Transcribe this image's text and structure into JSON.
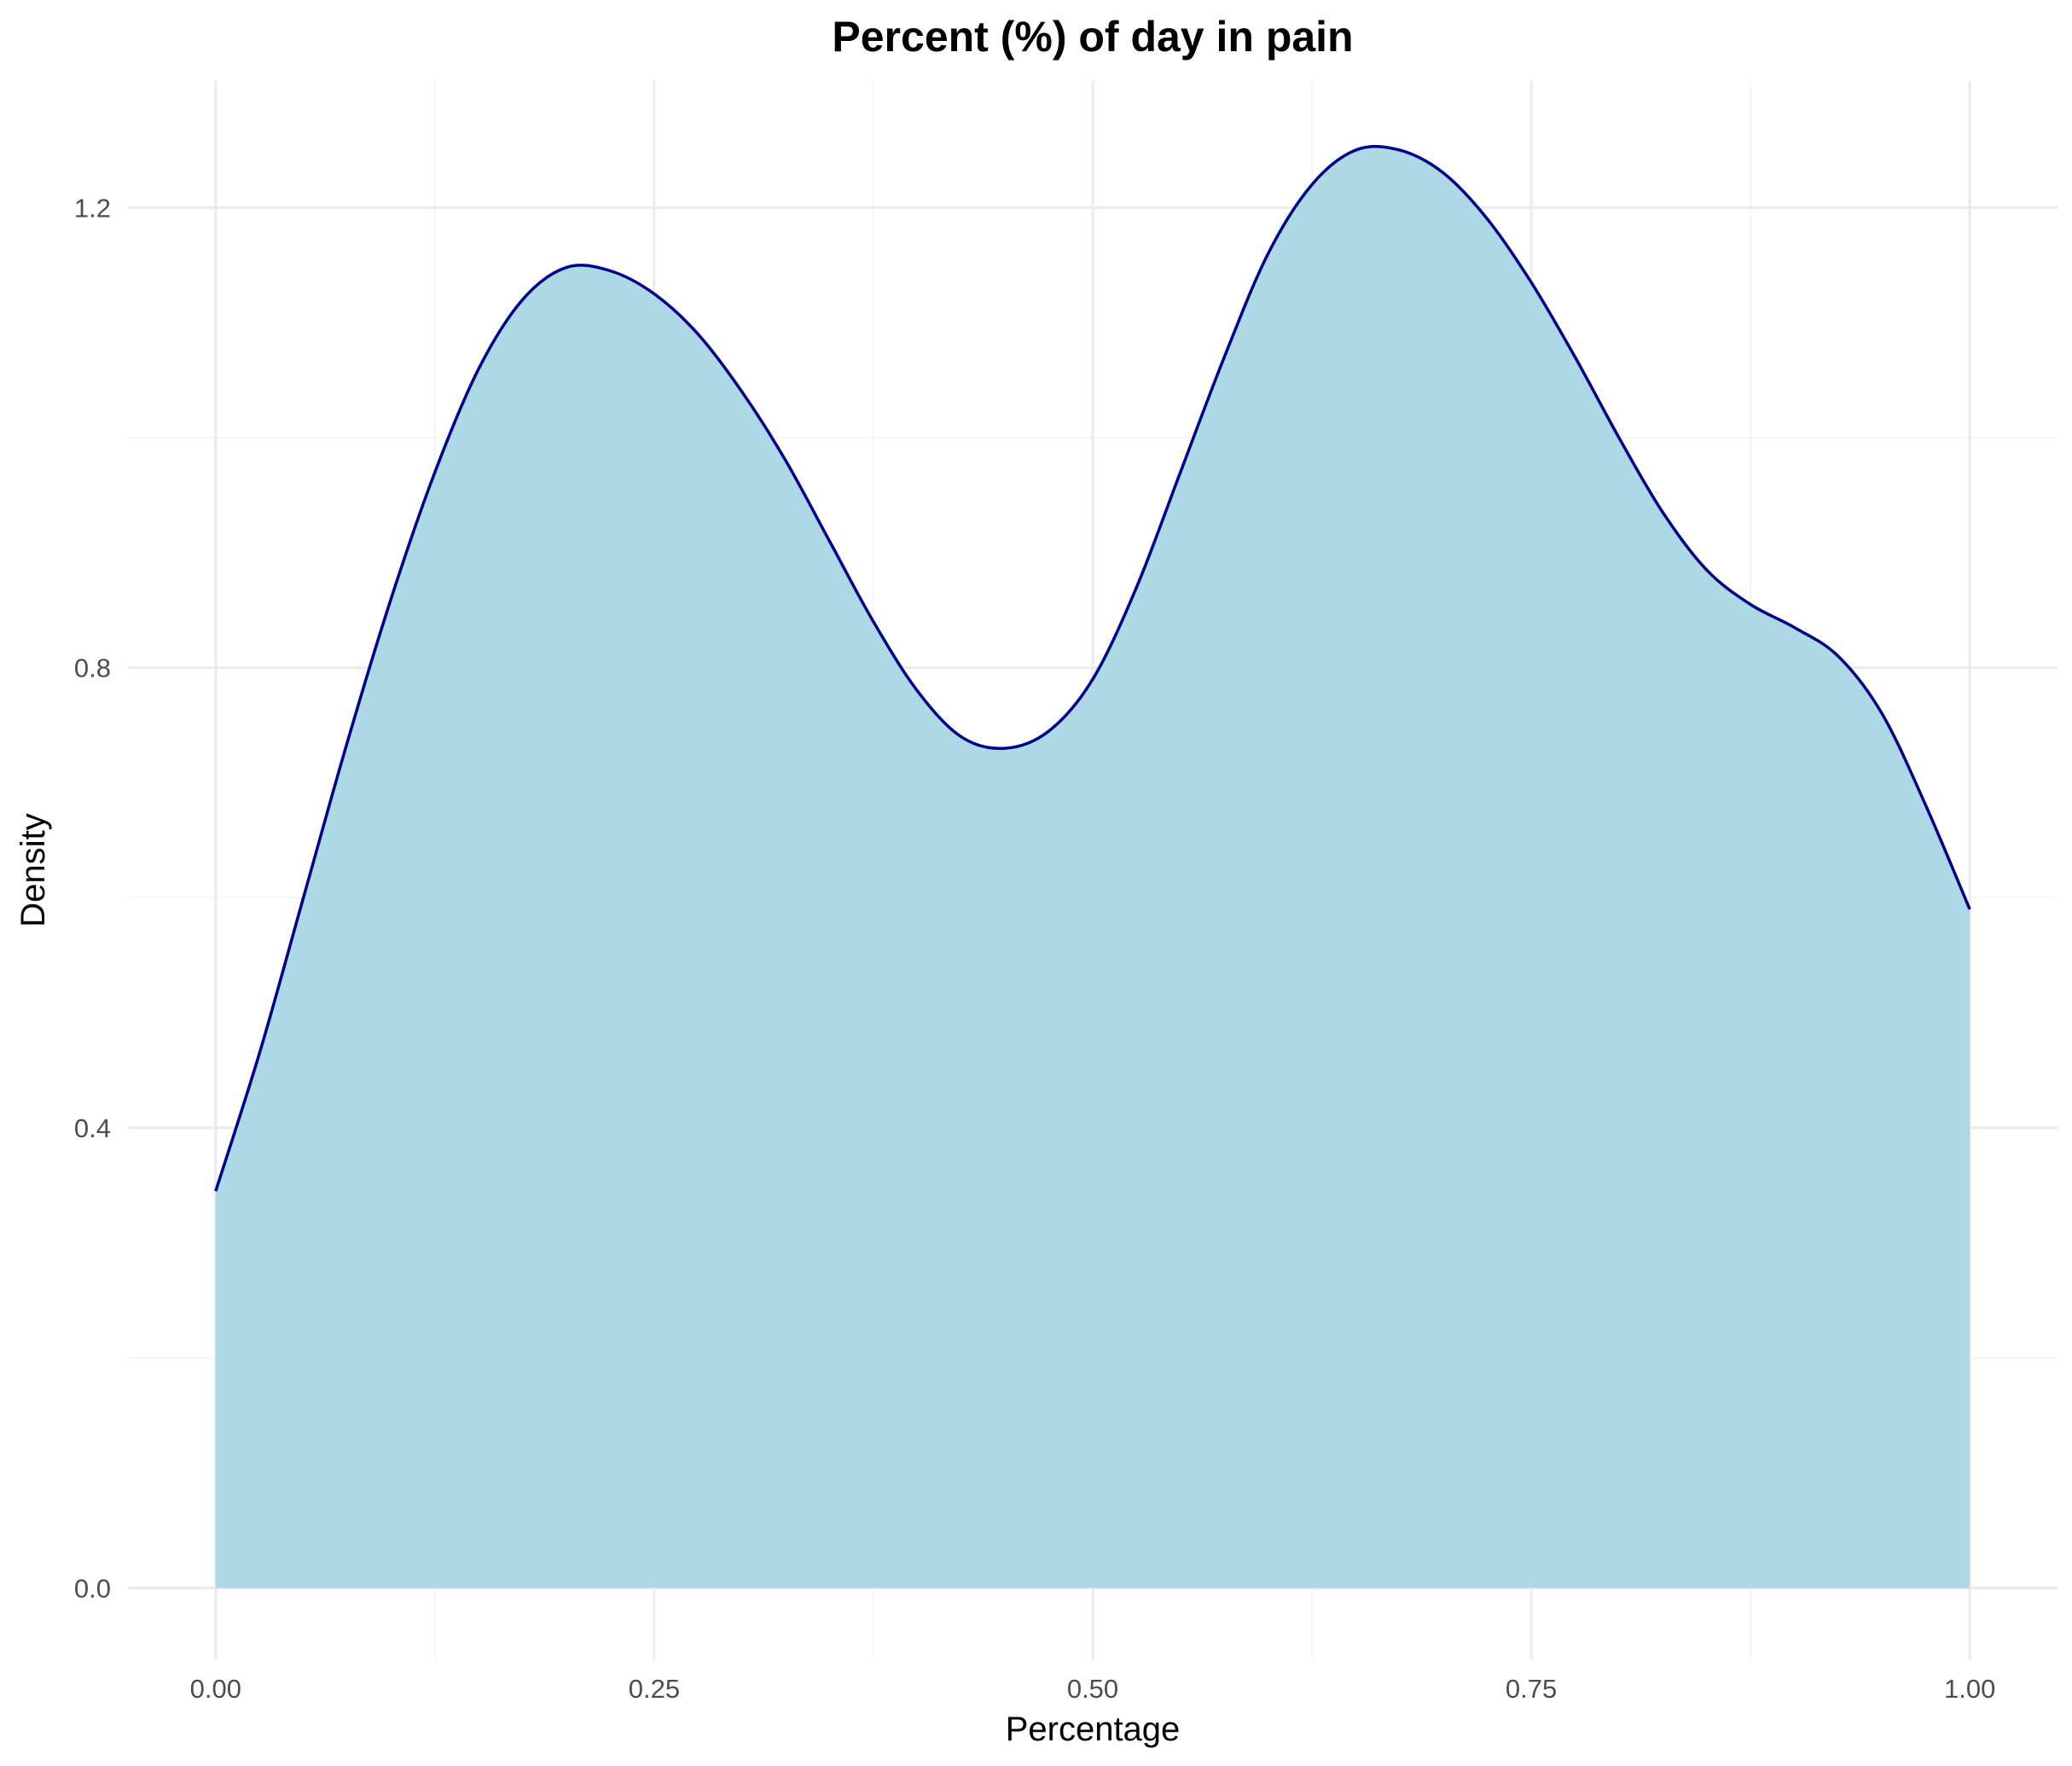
{
  "chart_data": {
    "type": "area",
    "title": "Percent (%) of day in pain",
    "xlabel": "Percentage",
    "ylabel": "Density",
    "xlim": [
      -0.05,
      1.05
    ],
    "ylim": [
      -0.062,
      1.31
    ],
    "x_ticks": [
      0.0,
      0.25,
      0.5,
      0.75,
      1.0
    ],
    "x_tick_labels": [
      "0.00",
      "0.25",
      "0.50",
      "0.75",
      "1.00"
    ],
    "y_ticks": [
      0.0,
      0.4,
      0.8,
      1.2
    ],
    "y_tick_labels": [
      "0.0",
      "0.4",
      "0.8",
      "1.2"
    ],
    "grid": true,
    "fill_color": "#add8e6",
    "line_color": "#00008b",
    "series": [
      {
        "x": [
          0.0,
          0.025,
          0.05,
          0.075,
          0.1,
          0.125,
          0.15,
          0.175,
          0.2,
          0.225,
          0.25,
          0.275,
          0.3,
          0.325,
          0.35,
          0.375,
          0.4,
          0.425,
          0.45,
          0.475,
          0.5,
          0.525,
          0.55,
          0.575,
          0.6,
          0.625,
          0.65,
          0.675,
          0.7,
          0.725,
          0.75,
          0.775,
          0.8,
          0.825,
          0.85,
          0.875,
          0.9,
          0.925,
          0.95,
          0.975,
          1.0
        ],
        "y": [
          0.345,
          0.465,
          0.6,
          0.735,
          0.86,
          0.97,
          1.06,
          1.12,
          1.148,
          1.145,
          1.125,
          1.09,
          1.04,
          0.98,
          0.91,
          0.84,
          0.78,
          0.74,
          0.73,
          0.745,
          0.79,
          0.87,
          0.97,
          1.07,
          1.16,
          1.22,
          1.25,
          1.25,
          1.23,
          1.19,
          1.135,
          1.07,
          1.0,
          0.935,
          0.885,
          0.855,
          0.835,
          0.81,
          0.76,
          0.68,
          0.59
        ]
      }
    ]
  }
}
